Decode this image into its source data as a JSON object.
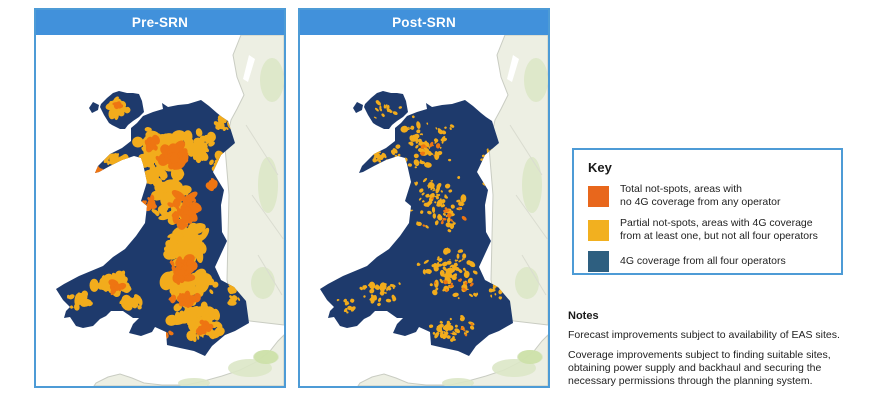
{
  "panels": [
    {
      "id": "pre",
      "title": "Pre-SRN"
    },
    {
      "id": "post",
      "title": "Post-SRN"
    }
  ],
  "key": {
    "title": "Key",
    "items": [
      {
        "swatch_color": "#e8671c",
        "label": [
          "Total not-spots, areas with",
          "no 4G coverage from any operator"
        ]
      },
      {
        "swatch_color": "#f2b01f",
        "label": [
          "Partial not-spots, areas with 4G coverage",
          "from at least one, but not all four operators"
        ]
      },
      {
        "swatch_color": "#2e5f80",
        "label": [
          "4G coverage from all four operators"
        ]
      }
    ]
  },
  "notes": {
    "title": "Notes",
    "paragraphs": [
      "Forecast improvements subject to availability of EAS sites.",
      [
        "Coverage improvements subject to finding suitable sites,",
        "obtaining power supply and backhaul and securing the",
        "necessary permissions through the planning system."
      ]
    ]
  },
  "map_colors": {
    "sea": "#ffffff",
    "land": "#edefe3",
    "land_green": "#dce7c6",
    "land_green_bright": "#cbe0a4",
    "coast_stroke": "#c9ccc2",
    "road": "#dadcd0",
    "wales_full_coverage": "#1e3a6c",
    "total_notspot": "#ee7512",
    "partial_notspot": "#f2ac1c"
  },
  "header_color": "#4191db",
  "border_color": "#4d9bd6"
}
